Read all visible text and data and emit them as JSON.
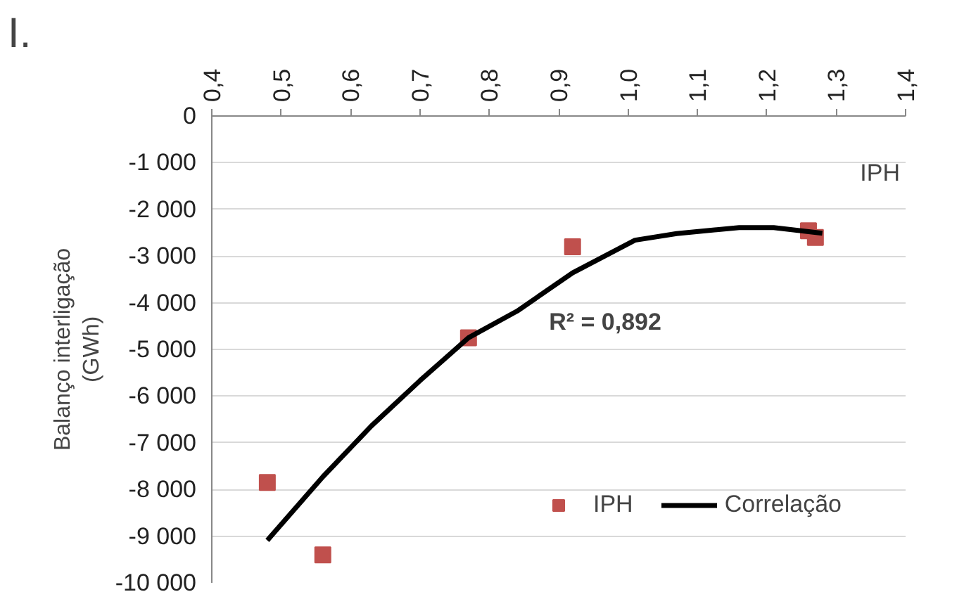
{
  "chart_data": {
    "type": "scatter",
    "xlabel": "IPH",
    "ylabel": "Balanço interligação\n(GWh)",
    "annotations": [
      "I.",
      "R² = 0,892"
    ],
    "xlim": [
      0.4,
      1.4
    ],
    "ylim": [
      -10000,
      0
    ],
    "xticks": [
      {
        "value": 0.4,
        "label": "0,4"
      },
      {
        "value": 0.5,
        "label": "0,5"
      },
      {
        "value": 0.6,
        "label": "0,6"
      },
      {
        "value": 0.7,
        "label": "0,7"
      },
      {
        "value": 0.8,
        "label": "0,8"
      },
      {
        "value": 0.9,
        "label": "0,9"
      },
      {
        "value": 1.0,
        "label": "1,0"
      },
      {
        "value": 1.1,
        "label": "1,1"
      },
      {
        "value": 1.2,
        "label": "1,2"
      },
      {
        "value": 1.3,
        "label": "1,3"
      },
      {
        "value": 1.4,
        "label": "1,4"
      }
    ],
    "yticks": [
      0,
      {
        "value": -1000,
        "label": "-1 000"
      },
      {
        "value": -2000,
        "label": "-2 000"
      },
      {
        "value": -3000,
        "label": "-3 000"
      },
      {
        "value": -4000,
        "label": "-4 000"
      },
      {
        "value": -5000,
        "label": "-5 000"
      },
      {
        "value": -6000,
        "label": "-6 000"
      },
      {
        "value": -7000,
        "label": "-7 000"
      },
      {
        "value": -8000,
        "label": "-8 000"
      },
      {
        "value": -9000,
        "label": "-9 000"
      },
      {
        "value": -10000,
        "label": "-10 000"
      }
    ],
    "grid": "y",
    "legend": "bottom right",
    "series": [
      {
        "name": "IPH",
        "marker": "square",
        "color": "#c0504d",
        "x": [
          0.48,
          0.56,
          0.77,
          0.92,
          1.26,
          1.27
        ],
        "values": [
          -7850,
          -9400,
          -4750,
          -2800,
          -2460,
          -2600
        ]
      },
      {
        "name": "Correlação",
        "type": "line",
        "marker": "none",
        "line_style": "solid",
        "color": "#000000",
        "x": [
          0.48,
          0.56,
          0.63,
          0.7,
          0.77,
          0.84,
          0.92,
          1.01,
          1.07,
          1.16,
          1.21,
          1.28
        ],
        "values": [
          -9090,
          -7730,
          -6640,
          -5670,
          -4750,
          -4180,
          -3360,
          -2660,
          -2520,
          -2390,
          -2390,
          -2510
        ]
      }
    ]
  }
}
